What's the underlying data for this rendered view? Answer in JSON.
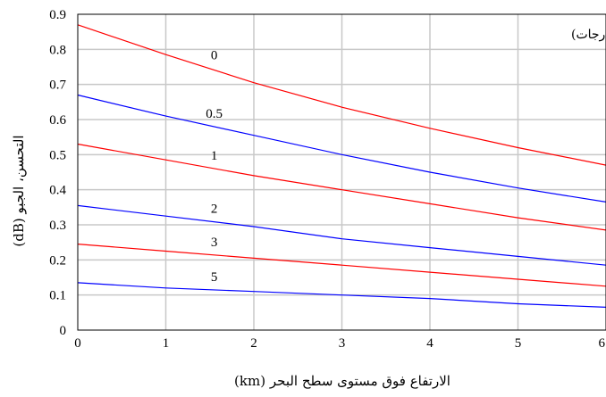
{
  "chart_data": {
    "type": "line",
    "title": "",
    "annotation": "زاوية الارتفاع في الفضاء الحر (درجات)",
    "xlabel": "الارتفاع فوق مستوى سطح البحر (km)",
    "ylabel": "التحسن، الجبو (dB)",
    "xlim": [
      0,
      6
    ],
    "ylim": [
      0,
      0.9
    ],
    "x_ticks": [
      "0",
      "1",
      "2",
      "3",
      "4",
      "5",
      "6"
    ],
    "y_ticks": [
      "0",
      "0.1",
      "0.2",
      "0.3",
      "0.4",
      "0.5",
      "0.6",
      "0.7",
      "0.8",
      "0.9"
    ],
    "grid": true,
    "x": [
      0,
      1,
      2,
      3,
      4,
      5,
      6
    ],
    "series": [
      {
        "name": "0",
        "color": "#ff0000",
        "values": [
          0.87,
          0.785,
          0.705,
          0.635,
          0.575,
          0.52,
          0.47
        ]
      },
      {
        "name": "0.5",
        "color": "#0000ff",
        "values": [
          0.67,
          0.61,
          0.555,
          0.5,
          0.45,
          0.405,
          0.365
        ]
      },
      {
        "name": "1",
        "color": "#ff0000",
        "values": [
          0.53,
          0.485,
          0.44,
          0.4,
          0.36,
          0.32,
          0.285
        ]
      },
      {
        "name": "2",
        "color": "#0000ff",
        "values": [
          0.355,
          0.325,
          0.295,
          0.26,
          0.235,
          0.21,
          0.185
        ]
      },
      {
        "name": "3",
        "color": "#ff0000",
        "values": [
          0.245,
          0.225,
          0.205,
          0.185,
          0.165,
          0.145,
          0.125
        ]
      },
      {
        "name": "5",
        "color": "#0000ff",
        "values": [
          0.135,
          0.12,
          0.11,
          0.1,
          0.09,
          0.075,
          0.065
        ]
      }
    ]
  }
}
